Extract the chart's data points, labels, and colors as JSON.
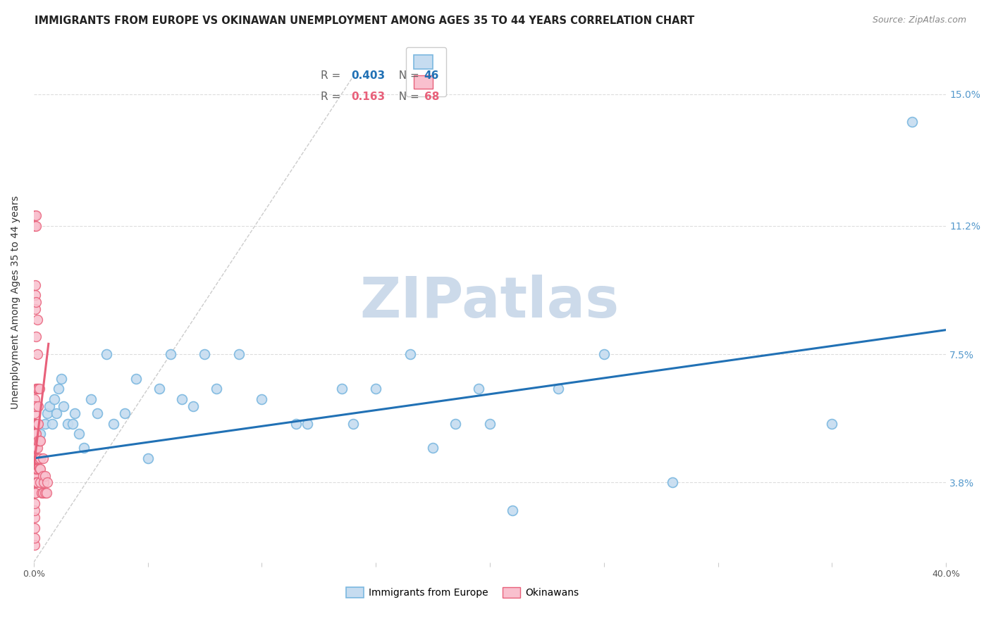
{
  "title": "IMMIGRANTS FROM EUROPE VS OKINAWAN UNEMPLOYMENT AMONG AGES 35 TO 44 YEARS CORRELATION CHART",
  "source": "Source: ZipAtlas.com",
  "ylabel": "Unemployment Among Ages 35 to 44 years",
  "yticks_right": [
    3.8,
    7.5,
    11.2,
    15.0
  ],
  "ytick_labels_right": [
    "3.8%",
    "7.5%",
    "11.2%",
    "15.0%"
  ],
  "xlim": [
    0.0,
    40.0
  ],
  "ylim": [
    1.5,
    16.5
  ],
  "watermark": "ZIPatlas",
  "blue_points_x": [
    0.3,
    0.5,
    0.6,
    0.7,
    0.8,
    0.9,
    1.0,
    1.1,
    1.2,
    1.3,
    1.5,
    1.7,
    1.8,
    2.0,
    2.2,
    2.5,
    2.8,
    3.2,
    3.5,
    4.0,
    4.5,
    5.0,
    5.5,
    6.0,
    6.5,
    7.0,
    7.5,
    8.0,
    9.0,
    10.0,
    11.5,
    12.0,
    13.5,
    14.0,
    15.0,
    16.5,
    17.5,
    18.5,
    19.5,
    20.0,
    21.0,
    23.0,
    25.0,
    28.0,
    35.0,
    38.5
  ],
  "blue_points_y": [
    5.2,
    5.5,
    5.8,
    6.0,
    5.5,
    6.2,
    5.8,
    6.5,
    6.8,
    6.0,
    5.5,
    5.5,
    5.8,
    5.2,
    4.8,
    6.2,
    5.8,
    7.5,
    5.5,
    5.8,
    6.8,
    4.5,
    6.5,
    7.5,
    6.2,
    6.0,
    7.5,
    6.5,
    7.5,
    6.2,
    5.5,
    5.5,
    6.5,
    5.5,
    6.5,
    7.5,
    4.8,
    5.5,
    6.5,
    5.5,
    3.0,
    6.5,
    7.5,
    3.8,
    5.5,
    14.2
  ],
  "pink_points_x": [
    0.05,
    0.05,
    0.05,
    0.05,
    0.05,
    0.05,
    0.05,
    0.05,
    0.05,
    0.05,
    0.05,
    0.05,
    0.05,
    0.05,
    0.05,
    0.05,
    0.05,
    0.05,
    0.05,
    0.05,
    0.07,
    0.07,
    0.07,
    0.07,
    0.07,
    0.07,
    0.07,
    0.07,
    0.07,
    0.07,
    0.1,
    0.1,
    0.1,
    0.1,
    0.1,
    0.1,
    0.1,
    0.1,
    0.1,
    0.1,
    0.15,
    0.15,
    0.15,
    0.15,
    0.15,
    0.15,
    0.15,
    0.2,
    0.2,
    0.2,
    0.2,
    0.2,
    0.25,
    0.25,
    0.25,
    0.3,
    0.3,
    0.3,
    0.3,
    0.35,
    0.4,
    0.4,
    0.4,
    0.45,
    0.5,
    0.5,
    0.55,
    0.6
  ],
  "pink_points_y": [
    2.0,
    2.2,
    2.5,
    2.8,
    3.0,
    3.2,
    3.5,
    3.8,
    4.0,
    4.2,
    4.5,
    4.8,
    5.0,
    5.2,
    5.5,
    5.8,
    6.0,
    6.2,
    11.2,
    11.5,
    3.5,
    4.0,
    4.5,
    5.0,
    5.2,
    5.5,
    6.0,
    8.8,
    9.2,
    9.5,
    3.8,
    4.2,
    4.8,
    5.2,
    5.5,
    6.5,
    8.0,
    9.0,
    11.2,
    11.5,
    3.8,
    4.2,
    4.8,
    5.5,
    6.5,
    7.5,
    8.5,
    4.5,
    5.0,
    5.5,
    6.0,
    6.5,
    4.2,
    5.0,
    6.5,
    3.8,
    4.2,
    4.5,
    5.0,
    3.5,
    3.5,
    4.0,
    4.5,
    3.8,
    3.5,
    4.0,
    3.5,
    3.8
  ],
  "blue_trendline_x": [
    0.0,
    40.0
  ],
  "blue_trendline_y": [
    4.5,
    8.2
  ],
  "pink_trendline_x": [
    0.0,
    0.65
  ],
  "pink_trendline_y": [
    4.2,
    7.8
  ],
  "ref_line_x": [
    0.0,
    14.0
  ],
  "ref_line_y": [
    1.5,
    15.5
  ],
  "blue_face": "#c6dcf0",
  "blue_edge": "#7bb8e0",
  "pink_face": "#f9c0ce",
  "pink_edge": "#e8607a",
  "blue_trend_color": "#2171b5",
  "pink_trend_color": "#e8607a",
  "background_color": "#ffffff",
  "grid_color": "#dddddd",
  "title_fontsize": 10.5,
  "source_fontsize": 9,
  "watermark_color": "#ccdaea",
  "marker_size": 100,
  "legend_R_blue": "0.403",
  "legend_N_blue": "46",
  "legend_R_pink": "0.163",
  "legend_N_pink": "68"
}
